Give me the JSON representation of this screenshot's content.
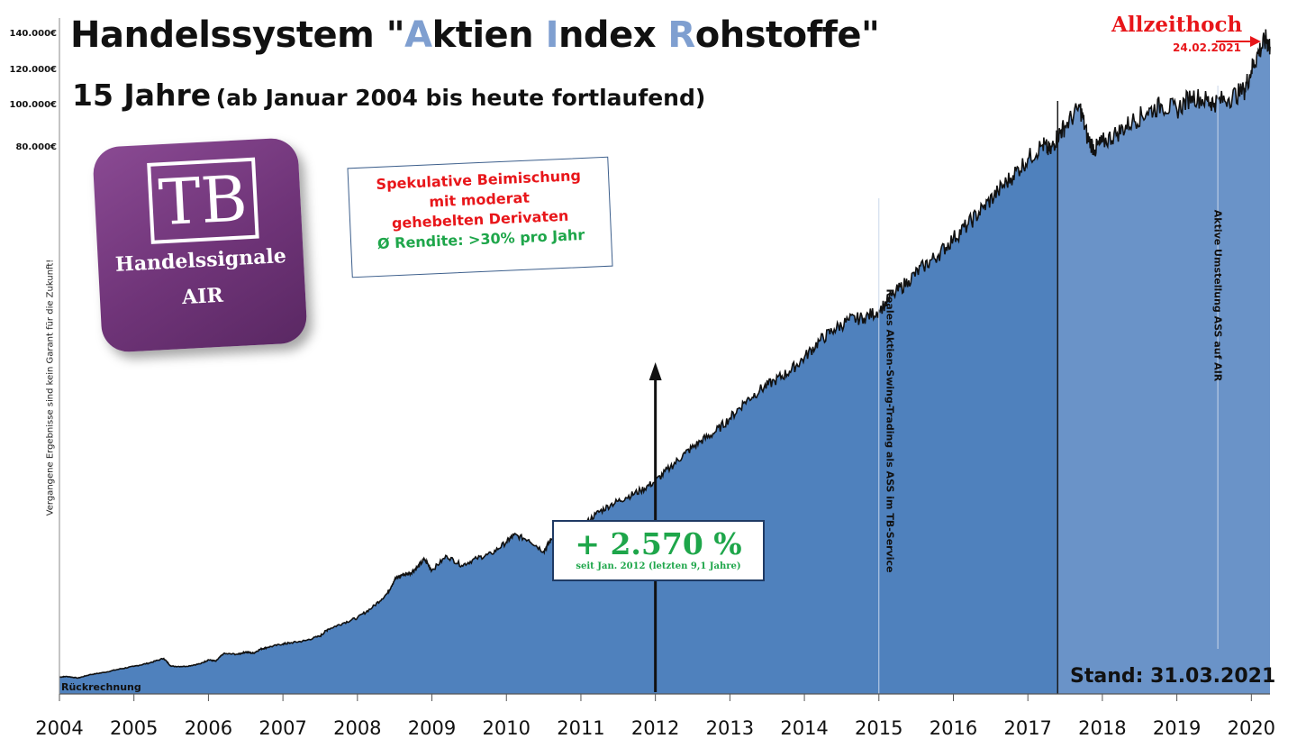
{
  "chart_data": {
    "type": "area",
    "title_parts": [
      "Handelssystem \"",
      "A",
      "ktien ",
      "I",
      "ndex ",
      "R",
      "ohstoffe\""
    ],
    "subtitle_main": "15 Jahre",
    "subtitle_paren": "(ab Januar 2004 bis heute fortlaufend)",
    "xlabel": "",
    "ylabel": "",
    "x_ticks": [
      "2004",
      "2005",
      "2006",
      "2007",
      "2008",
      "2009",
      "2010",
      "2011",
      "2012",
      "2013",
      "2014",
      "2015",
      "2016",
      "2017",
      "2018",
      "2019",
      "2020"
    ],
    "y_ticks": [
      "140.000€",
      "120.000€",
      "100.000€",
      "80.000€"
    ],
    "series": [
      {
        "x": [
          2004.0,
          2004.1,
          2004.25,
          2004.4,
          2004.6,
          2004.8,
          2005.0,
          2005.2,
          2005.4,
          2005.5,
          2005.7,
          2005.9,
          2006.0,
          2006.1,
          2006.2,
          2006.4,
          2006.5,
          2006.6,
          2006.7,
          2006.8,
          2007.0,
          2007.1,
          2007.3,
          2007.5,
          2007.6,
          2007.8,
          2008.0,
          2008.2,
          2008.4,
          2008.5,
          2008.6,
          2008.7,
          2008.8,
          2008.9,
          2009.0,
          2009.2,
          2009.4,
          2009.6,
          2009.8,
          2010.0,
          2010.1,
          2010.3,
          2010.5,
          2010.6,
          2010.8,
          2011.0,
          2011.2,
          2011.4,
          2011.6,
          2011.8,
          2012.0,
          2012.2,
          2012.4,
          2012.6,
          2012.8,
          2013.0,
          2013.2,
          2013.4,
          2013.6,
          2013.8,
          2014.0,
          2014.2,
          2014.4,
          2014.6,
          2014.8,
          2015.0,
          2015.2,
          2015.4,
          2015.6,
          2015.8,
          2016.0,
          2016.2,
          2016.4,
          2016.6,
          2016.8,
          2017.0,
          2017.2,
          2017.3,
          2017.4,
          2017.5,
          2017.7,
          2017.8,
          2017.9,
          2018.0,
          2018.2,
          2018.4,
          2018.6,
          2018.8,
          2019.0,
          2019.2,
          2019.4,
          2019.5,
          2019.7,
          2019.9,
          2020.0,
          2020.1,
          2020.2,
          2020.25
        ],
        "y": [
          3600,
          3750,
          3400,
          4100,
          4600,
          5300,
          5900,
          6600,
          7600,
          5900,
          5900,
          6500,
          7300,
          7000,
          8600,
          8500,
          9000,
          8700,
          9600,
          10000,
          10700,
          10900,
          11400,
          12400,
          13800,
          15100,
          16300,
          18500,
          21500,
          24500,
          25500,
          25800,
          27000,
          28800,
          26500,
          29500,
          27500,
          29000,
          30000,
          32500,
          34000,
          33000,
          30500,
          33000,
          34500,
          35500,
          38500,
          40500,
          42000,
          43500,
          45500,
          48500,
          51500,
          54000,
          56000,
          59000,
          62500,
          65000,
          67000,
          69000,
          72000,
          75500,
          78000,
          80000,
          80500,
          82000,
          85500,
          88500,
          91500,
          94000,
          97500,
          100500,
          104000,
          107500,
          111000,
          114500,
          117500,
          116000,
          119500,
          121500,
          125500,
          119000,
          116500,
          118000,
          120000,
          122500,
          124500,
          126000,
          125000,
          128000,
          127000,
          126500,
          127500,
          129000,
          133500,
          137500,
          140000,
          138500
        ]
      }
    ],
    "ylim": [
      0,
      140000
    ],
    "xlim": [
      2004.0,
      2020.25
    ],
    "annotations": {
      "info_line1": "Spekulative Beimischung",
      "info_line2": "mit moderat",
      "info_line3": "gehebelten Derivaten",
      "info_line4": "Ø Rendite: >30% pro Jahr",
      "perf_value": "+ 2.570 %",
      "perf_sub": "seit Jan. 2012 (letzten 9,1 Jahre)",
      "ath_label": "Allzeithoch",
      "ath_date": "24.02.2021",
      "stand": "Stand: 31.03.2021",
      "rueckrechnung": "Rückrechnung",
      "vertical_note": "Vergangene Ergebnisse sind kein Garant für die Zukunft!",
      "phase1": "Reales Aktien-Swing-Trading als ASS im TB-Service",
      "phase2": "Aktive Umstellung ASS auf AIR"
    },
    "logo": {
      "line0": "TB",
      "line1": "Handelssignale",
      "line2": "AIR"
    },
    "colors": {
      "area": "#4f81bd",
      "area_light": "#6a93c8",
      "line": "#111111",
      "highlight": "#7f9fd0",
      "red": "#e8161a",
      "green": "#1ea64a"
    },
    "grid": false
  }
}
